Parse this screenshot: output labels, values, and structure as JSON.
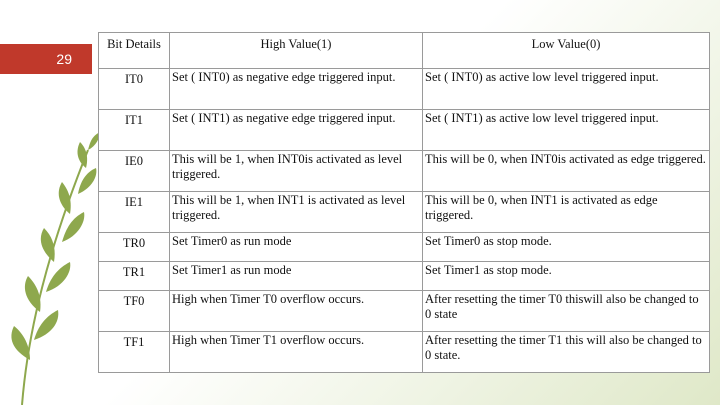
{
  "slide": {
    "number": "29"
  },
  "theme": {
    "accent": "#c0392b",
    "leaf": "#8ea84d"
  },
  "table": {
    "headers": [
      "Bit Details",
      "High Value(1)",
      "Low Value(0)"
    ],
    "rows": [
      {
        "bit": "IT0",
        "high": "Set ( INT0) as negative edge triggered input.",
        "low": "Set ( INT0) as active low level triggered input."
      },
      {
        "bit": "IT1",
        "high": "Set ( INT1) as negative edge triggered input.",
        "low": "Set ( INT1) as active low level triggered input."
      },
      {
        "bit": "IE0",
        "high": "This will be 1, when INT0is activated as level triggered.",
        "low": "This will be 0, when INT0is activated as edge triggered."
      },
      {
        "bit": "IE1",
        "high": "This will be 1, when INT1 is activated as level triggered.",
        "low": "This will be 0, when INT1 is activated as edge triggered."
      },
      {
        "bit": "TR0",
        "high": "Set Timer0 as run mode",
        "low": "Set Timer0 as stop mode."
      },
      {
        "bit": "TR1",
        "high": "Set Timer1 as run mode",
        "low": "Set Timer1 as stop mode."
      },
      {
        "bit": "TF0",
        "high": "High when Timer T0 overflow occurs.",
        "low": "After resetting the timer T0 thiswill also be changed to 0 state"
      },
      {
        "bit": "TF1",
        "high": "High when Timer T1 overflow occurs.",
        "low": "After resetting the timer T1 this will also be changed to 0 state."
      }
    ]
  }
}
